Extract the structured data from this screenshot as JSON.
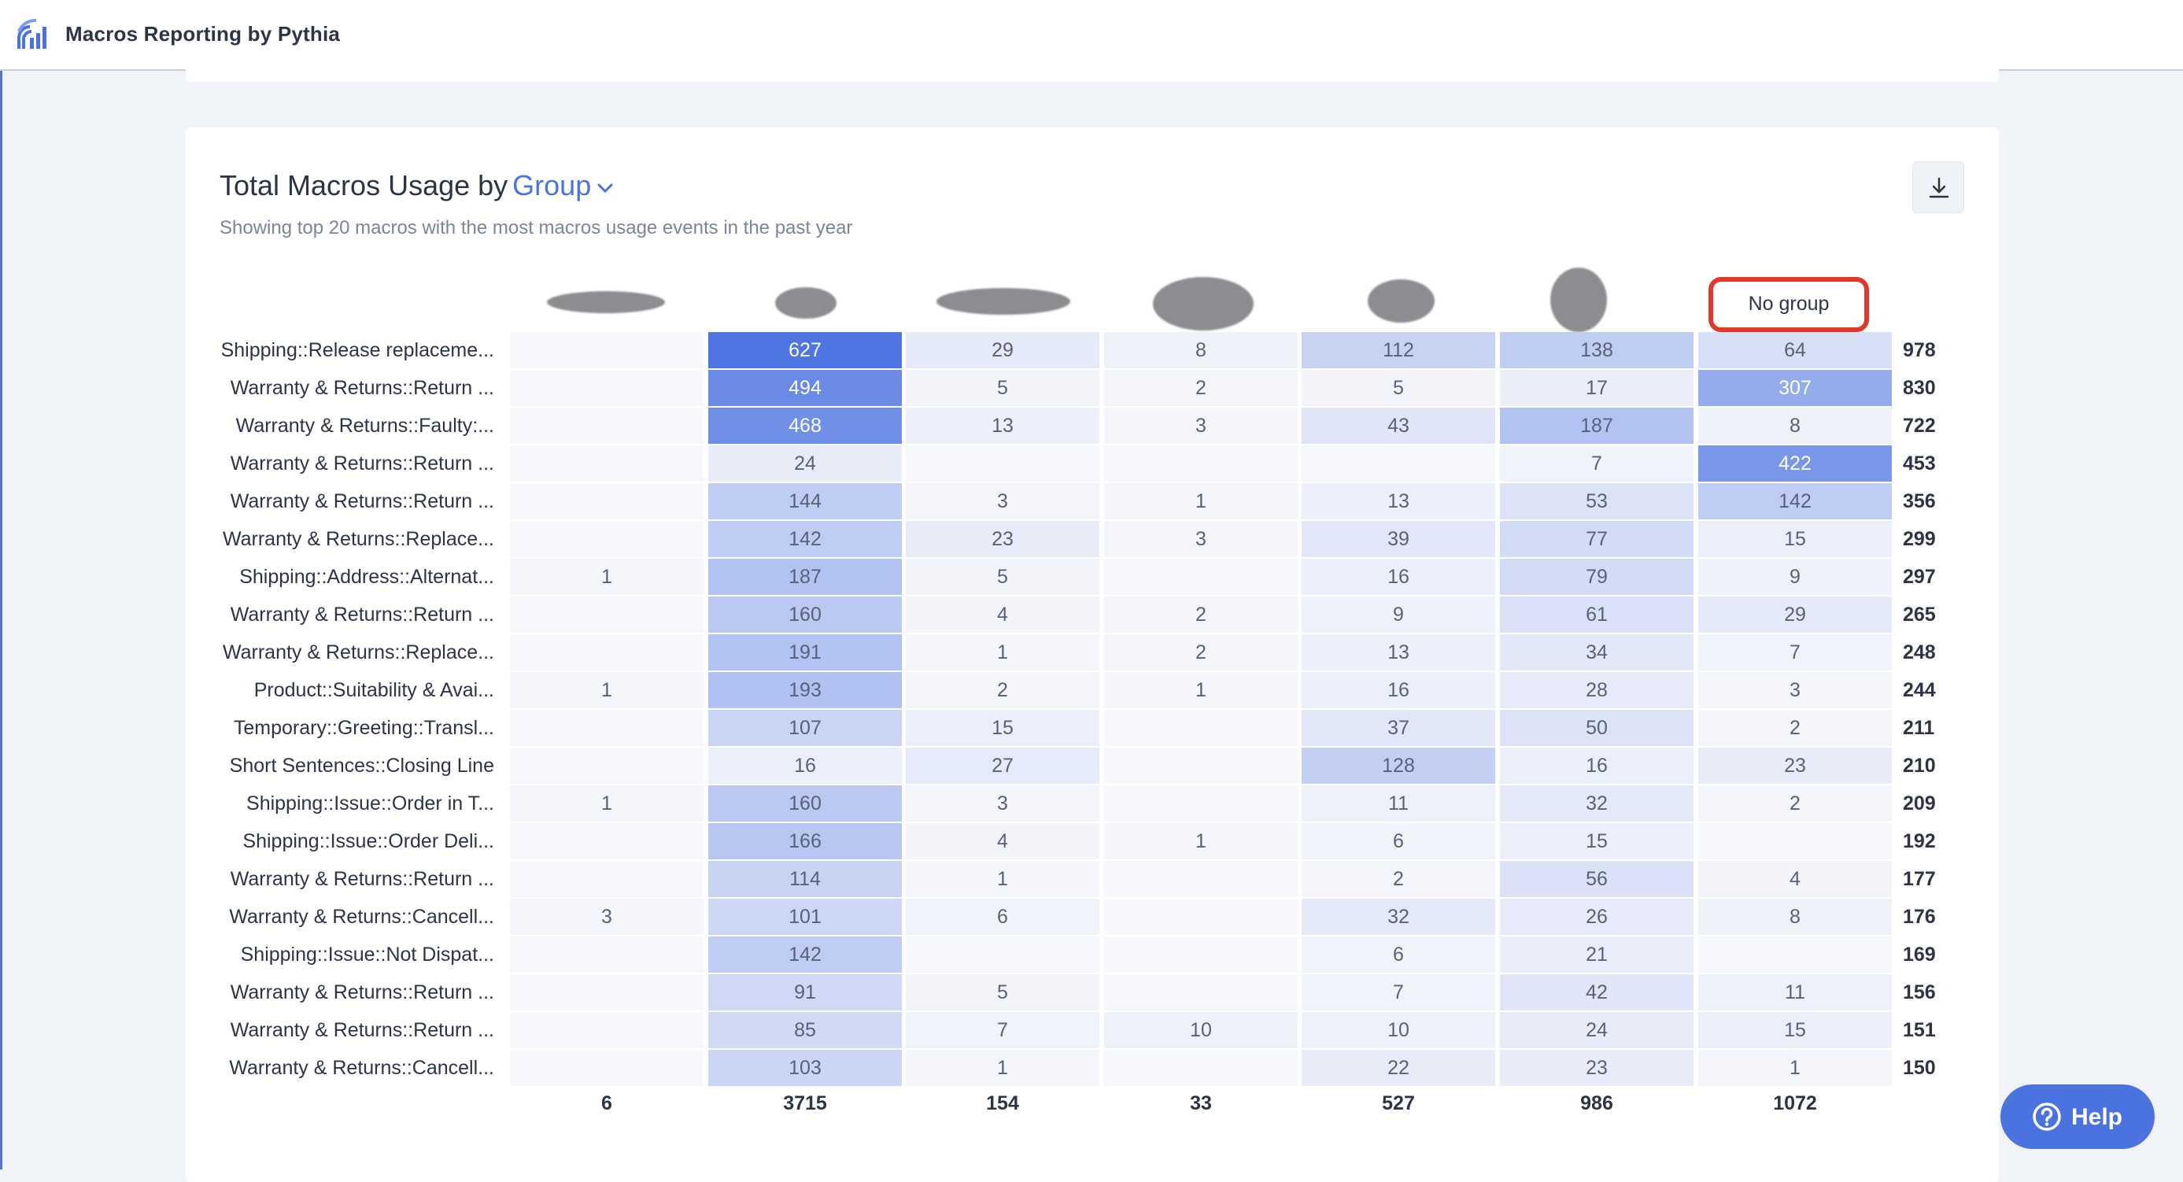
{
  "app": {
    "title": "Macros Reporting by Pythia"
  },
  "card": {
    "title_prefix": "Total Macros Usage by",
    "title_group": "Group",
    "subtitle": "Showing top 20 macros with the most macros usage events in the past year"
  },
  "columns": [
    "",
    "",
    "",
    "",
    "",
    "",
    "No group"
  ],
  "rows": [
    {
      "label": "Shipping::Release replaceme...",
      "values": [
        "",
        "627",
        "29",
        "8",
        "112",
        "138",
        "64"
      ],
      "total": "978"
    },
    {
      "label": "Warranty & Returns::Return ...",
      "values": [
        "",
        "494",
        "5",
        "2",
        "5",
        "17",
        "307"
      ],
      "total": "830"
    },
    {
      "label": "Warranty & Returns::Faulty:...",
      "values": [
        "",
        "468",
        "13",
        "3",
        "43",
        "187",
        "8"
      ],
      "total": "722"
    },
    {
      "label": "Warranty & Returns::Return ...",
      "values": [
        "",
        "24",
        "",
        "",
        "",
        "7",
        "422"
      ],
      "total": "453"
    },
    {
      "label": "Warranty & Returns::Return ...",
      "values": [
        "",
        "144",
        "3",
        "1",
        "13",
        "53",
        "142"
      ],
      "total": "356"
    },
    {
      "label": "Warranty & Returns::Replace...",
      "values": [
        "",
        "142",
        "23",
        "3",
        "39",
        "77",
        "15"
      ],
      "total": "299"
    },
    {
      "label": "Shipping::Address::Alternat...",
      "values": [
        "1",
        "187",
        "5",
        "",
        "16",
        "79",
        "9"
      ],
      "total": "297"
    },
    {
      "label": "Warranty & Returns::Return ...",
      "values": [
        "",
        "160",
        "4",
        "2",
        "9",
        "61",
        "29"
      ],
      "total": "265"
    },
    {
      "label": "Warranty & Returns::Replace...",
      "values": [
        "",
        "191",
        "1",
        "2",
        "13",
        "34",
        "7"
      ],
      "total": "248"
    },
    {
      "label": "Product::Suitability & Avai...",
      "values": [
        "1",
        "193",
        "2",
        "1",
        "16",
        "28",
        "3"
      ],
      "total": "244"
    },
    {
      "label": "Temporary::Greeting::Transl...",
      "values": [
        "",
        "107",
        "15",
        "",
        "37",
        "50",
        "2"
      ],
      "total": "211"
    },
    {
      "label": "Short Sentences::Closing Line",
      "values": [
        "",
        "16",
        "27",
        "",
        "128",
        "16",
        "23"
      ],
      "total": "210"
    },
    {
      "label": "Shipping::Issue::Order in T...",
      "values": [
        "1",
        "160",
        "3",
        "",
        "11",
        "32",
        "2"
      ],
      "total": "209"
    },
    {
      "label": "Shipping::Issue::Order Deli...",
      "values": [
        "",
        "166",
        "4",
        "1",
        "6",
        "15",
        ""
      ],
      "total": "192"
    },
    {
      "label": "Warranty & Returns::Return ...",
      "values": [
        "",
        "114",
        "1",
        "",
        "2",
        "56",
        "4"
      ],
      "total": "177"
    },
    {
      "label": "Warranty & Returns::Cancell...",
      "values": [
        "3",
        "101",
        "6",
        "",
        "32",
        "26",
        "8"
      ],
      "total": "176"
    },
    {
      "label": "Shipping::Issue::Not Dispat...",
      "values": [
        "",
        "142",
        "",
        "",
        "6",
        "21",
        ""
      ],
      "total": "169"
    },
    {
      "label": "Warranty & Returns::Return ...",
      "values": [
        "",
        "91",
        "5",
        "",
        "7",
        "42",
        "11"
      ],
      "total": "156"
    },
    {
      "label": "Warranty & Returns::Return ...",
      "values": [
        "",
        "85",
        "7",
        "10",
        "10",
        "24",
        "15"
      ],
      "total": "151"
    },
    {
      "label": "Warranty & Returns::Cancell...",
      "values": [
        "",
        "103",
        "1",
        "",
        "22",
        "23",
        "1"
      ],
      "total": "150"
    }
  ],
  "column_totals": [
    "6",
    "3715",
    "154",
    "33",
    "527",
    "986",
    "1072"
  ],
  "help": {
    "label": "Help"
  },
  "colors": {
    "accent": "#4a73e0",
    "cell_max": "#4f75e2",
    "cell_min": "#f6f7fb",
    "highlight_border": "#e0382b"
  },
  "icons": {
    "logo": "pythia-logo-icon",
    "chevron": "chevron-down-icon",
    "download": "download-icon",
    "help": "question-circle-icon"
  }
}
